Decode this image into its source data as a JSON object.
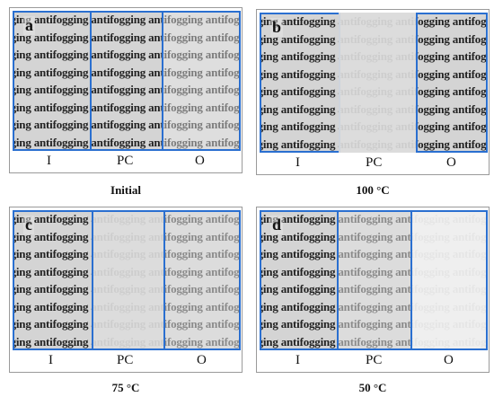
{
  "photo_text": "antifogging antifogging antifogging antifogging antifogging",
  "column_labels": [
    "I",
    "PC",
    "O"
  ],
  "panels": [
    {
      "letter": "a",
      "caption": "Initial"
    },
    {
      "letter": "b",
      "caption": "100 °C"
    },
    {
      "letter": "c",
      "caption": "75 °C"
    },
    {
      "letter": "d",
      "caption": "50 °C"
    }
  ],
  "colors": {
    "zone_border": "#2a6fd0"
  }
}
